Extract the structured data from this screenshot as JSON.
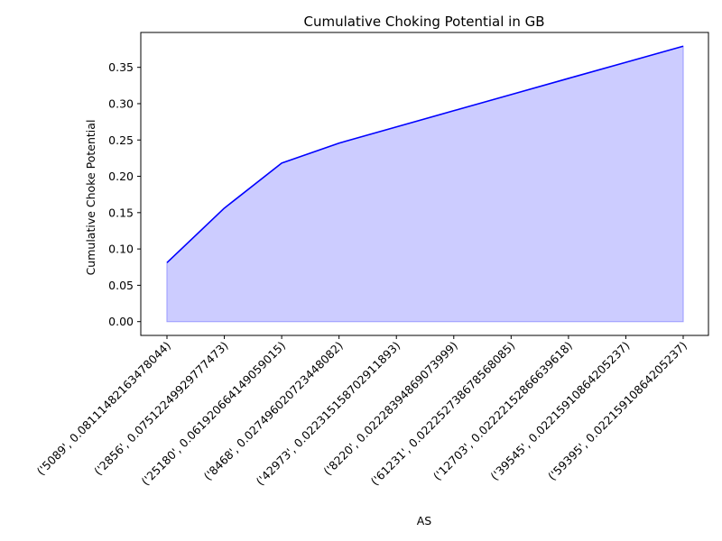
{
  "chart_data": {
    "type": "area",
    "title": "Cumulative Choking Potential in GB",
    "xlabel": "AS",
    "ylabel": "Cumulative Choke Potential",
    "categories": [
      "('5089', 0.0811148216347804​4)",
      "('2856', 0.07512249929777473)",
      "('25180', 0.06192066414905901​5)",
      "('8468', 0.02749602072344808​2)",
      "('42973', 0.02231515870291189​3)",
      "('8220', 0.02228394869073999)",
      "('61231', 0.02225273867856808​5)",
      "('12703', 0.02222152866639618)",
      "('39545', 0.02215910864205237)",
      "('59395', 0.02215910864205237)"
    ],
    "values": [
      0.0811,
      0.1562,
      0.2182,
      0.2457,
      0.268,
      0.2903,
      0.3125,
      0.3348,
      0.3569,
      0.3791
    ],
    "ylim": [
      -0.019,
      0.398
    ],
    "yticks": [
      0.0,
      0.05,
      0.1,
      0.15,
      0.2,
      0.25,
      0.3,
      0.35
    ],
    "ytick_labels": [
      "0.00",
      "0.05",
      "0.10",
      "0.15",
      "0.20",
      "0.25",
      "0.30",
      "0.35"
    ],
    "grid": false,
    "colors": {
      "line": "#0000ff",
      "fill": "#ccccff",
      "fill_edge": "#9999ff"
    }
  }
}
